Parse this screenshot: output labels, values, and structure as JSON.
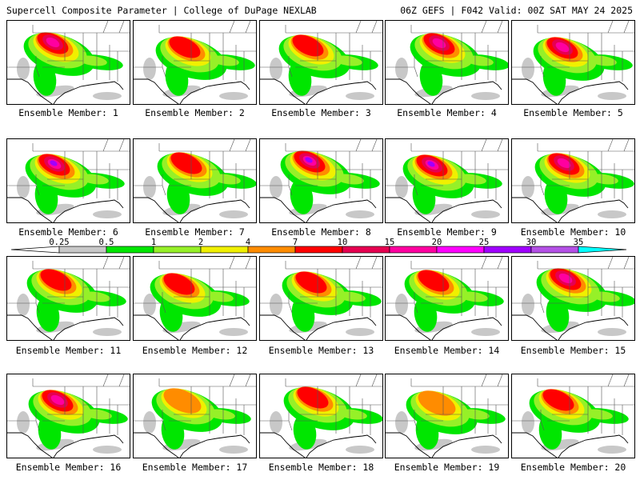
{
  "header": {
    "title": "Supercell Composite Parameter | College of DuPage NEXLAB",
    "run_info": "06Z GEFS | F042 Valid: 00Z SAT MAY 24 2025"
  },
  "legend": {
    "labels": [
      "0.25",
      "0.5",
      "1",
      "2",
      "4",
      "7",
      "10",
      "15",
      "20",
      "25",
      "30",
      "35"
    ],
    "colors": [
      "#c8c8c8",
      "#00e600",
      "#96f028",
      "#f0f000",
      "#ff8c00",
      "#ff0000",
      "#e60050",
      "#ff00a0",
      "#ff00ff",
      "#a000ff",
      "#b450e6",
      "#00ffff"
    ]
  },
  "members": [
    {
      "caption": "Ensemble Member: 1",
      "intensity": 4
    },
    {
      "caption": "Ensemble Member: 2",
      "intensity": 3
    },
    {
      "caption": "Ensemble Member: 3",
      "intensity": 3
    },
    {
      "caption": "Ensemble Member: 4",
      "intensity": 4
    },
    {
      "caption": "Ensemble Member: 5",
      "intensity": 4
    },
    {
      "caption": "Ensemble Member: 6",
      "intensity": 5
    },
    {
      "caption": "Ensemble Member: 7",
      "intensity": 3
    },
    {
      "caption": "Ensemble Member: 8",
      "intensity": 5
    },
    {
      "caption": "Ensemble Member: 9",
      "intensity": 5
    },
    {
      "caption": "Ensemble Member: 10",
      "intensity": 4
    },
    {
      "caption": "Ensemble Member: 11",
      "intensity": 3
    },
    {
      "caption": "Ensemble Member: 12",
      "intensity": 3
    },
    {
      "caption": "Ensemble Member: 13",
      "intensity": 3
    },
    {
      "caption": "Ensemble Member: 14",
      "intensity": 3
    },
    {
      "caption": "Ensemble Member: 15",
      "intensity": 4
    },
    {
      "caption": "Ensemble Member: 16",
      "intensity": 4
    },
    {
      "caption": "Ensemble Member: 17",
      "intensity": 2
    },
    {
      "caption": "Ensemble Member: 18",
      "intensity": 3
    },
    {
      "caption": "Ensemble Member: 19",
      "intensity": 2
    },
    {
      "caption": "Ensemble Member: 20",
      "intensity": 3
    }
  ]
}
